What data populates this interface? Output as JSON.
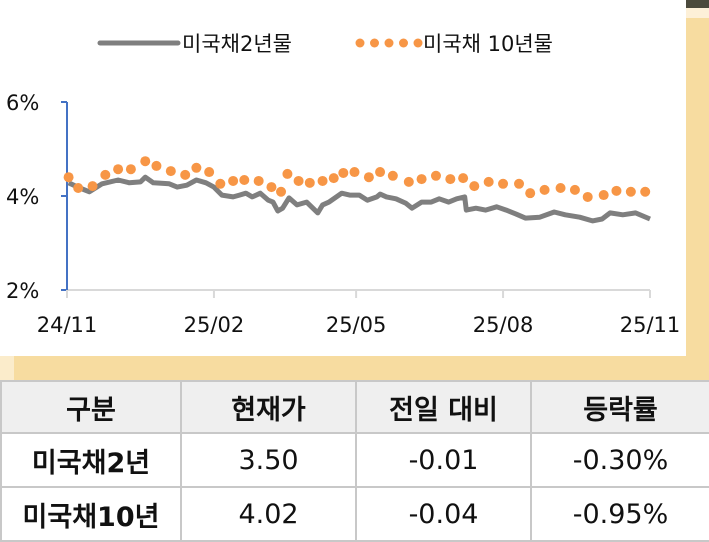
{
  "chart_data": {
    "type": "line",
    "title": "",
    "xlabel": "",
    "ylabel": "",
    "x_ticks": [
      "24/11",
      "25/02",
      "25/05",
      "25/08",
      "25/11"
    ],
    "x_tick_dates": [
      "2024-11-01",
      "2025-02-01",
      "2025-05-01",
      "2025-08-01",
      "2025-11-01"
    ],
    "xlim": [
      "2024-11-01",
      "2025-11-01"
    ],
    "y_ticks": [
      "6%",
      "4%",
      "2%"
    ],
    "y_tick_values": [
      6,
      4,
      2
    ],
    "ylim": [
      2,
      6
    ],
    "grid": false,
    "legend_position": "top",
    "series": [
      {
        "name": "미국채2년물",
        "style": "line",
        "color": "#7f7f7f",
        "x": [
          "2024-11-02",
          "2024-11-09",
          "2024-11-15",
          "2024-11-23",
          "2024-12-03",
          "2024-12-10",
          "2024-12-17",
          "2024-12-20",
          "2024-12-25",
          "2025-01-04",
          "2025-01-09",
          "2025-01-15",
          "2025-01-21",
          "2025-01-27",
          "2025-02-01",
          "2025-02-06",
          "2025-02-13",
          "2025-02-17",
          "2025-02-21",
          "2025-02-25",
          "2025-03-02",
          "2025-03-07",
          "2025-03-10",
          "2025-03-13",
          "2025-03-16",
          "2025-03-20",
          "2025-03-25",
          "2025-03-31",
          "2025-04-07",
          "2025-04-10",
          "2025-04-14",
          "2025-04-22",
          "2025-04-27",
          "2025-05-03",
          "2025-05-08",
          "2025-05-14",
          "2025-05-16",
          "2025-05-20",
          "2025-05-26",
          "2025-06-01",
          "2025-06-05",
          "2025-06-11",
          "2025-06-17",
          "2025-06-22",
          "2025-06-28",
          "2025-07-03",
          "2025-07-08",
          "2025-07-09",
          "2025-07-15",
          "2025-07-21",
          "2025-07-28",
          "2025-08-03",
          "2025-08-09",
          "2025-08-15",
          "2025-08-24",
          "2025-09-02",
          "2025-09-09",
          "2025-09-18",
          "2025-09-26",
          "2025-10-02",
          "2025-10-07",
          "2025-10-15",
          "2025-10-23",
          "2025-11-01"
        ],
        "y": [
          4.28,
          4.17,
          4.09,
          4.26,
          4.34,
          4.28,
          4.3,
          4.4,
          4.28,
          4.26,
          4.19,
          4.23,
          4.34,
          4.28,
          4.19,
          4.02,
          3.98,
          4.02,
          4.06,
          3.98,
          4.06,
          3.91,
          3.87,
          3.68,
          3.74,
          3.96,
          3.81,
          3.87,
          3.64,
          3.81,
          3.87,
          4.06,
          4.02,
          4.02,
          3.91,
          3.98,
          4.04,
          3.98,
          3.94,
          3.85,
          3.74,
          3.87,
          3.87,
          3.94,
          3.87,
          3.94,
          3.98,
          3.7,
          3.74,
          3.7,
          3.77,
          3.7,
          3.62,
          3.53,
          3.55,
          3.66,
          3.6,
          3.55,
          3.47,
          3.51,
          3.64,
          3.6,
          3.64,
          3.51
        ]
      },
      {
        "name": "미국채 10년물",
        "style": "dots",
        "color": "#f79646",
        "x": [
          "2024-11-02",
          "2024-11-08",
          "2024-11-17",
          "2024-11-25",
          "2024-12-03",
          "2024-12-11",
          "2024-12-20",
          "2024-12-27",
          "2025-01-05",
          "2025-01-14",
          "2025-01-21",
          "2025-01-29",
          "2025-02-05",
          "2025-02-13",
          "2025-02-20",
          "2025-03-01",
          "2025-03-09",
          "2025-03-15",
          "2025-03-19",
          "2025-03-26",
          "2025-04-02",
          "2025-04-10",
          "2025-04-17",
          "2025-04-23",
          "2025-04-30",
          "2025-05-09",
          "2025-05-16",
          "2025-05-24",
          "2025-06-03",
          "2025-06-11",
          "2025-06-20",
          "2025-06-29",
          "2025-07-07",
          "2025-07-14",
          "2025-07-23",
          "2025-08-01",
          "2025-08-11",
          "2025-08-18",
          "2025-08-27",
          "2025-09-06",
          "2025-09-15",
          "2025-09-23",
          "2025-10-03",
          "2025-10-11",
          "2025-10-20",
          "2025-10-29"
        ],
        "y": [
          4.4,
          4.17,
          4.21,
          4.45,
          4.57,
          4.57,
          4.74,
          4.64,
          4.53,
          4.45,
          4.6,
          4.51,
          4.26,
          4.32,
          4.34,
          4.32,
          4.19,
          4.09,
          4.47,
          4.32,
          4.28,
          4.32,
          4.38,
          4.49,
          4.51,
          4.4,
          4.51,
          4.43,
          4.3,
          4.36,
          4.43,
          4.36,
          4.38,
          4.21,
          4.3,
          4.26,
          4.26,
          4.06,
          4.13,
          4.17,
          4.13,
          3.98,
          4.02,
          4.11,
          4.09,
          4.09
        ]
      }
    ]
  },
  "table": {
    "headers": [
      "구분",
      "현재가",
      "전일 대비",
      "등락률"
    ],
    "rows": [
      [
        "미국채2년",
        "3.50",
        "-0.01",
        "-0.30%"
      ],
      [
        "미국채10년",
        "4.02",
        "-0.04",
        "-0.95%"
      ]
    ]
  }
}
